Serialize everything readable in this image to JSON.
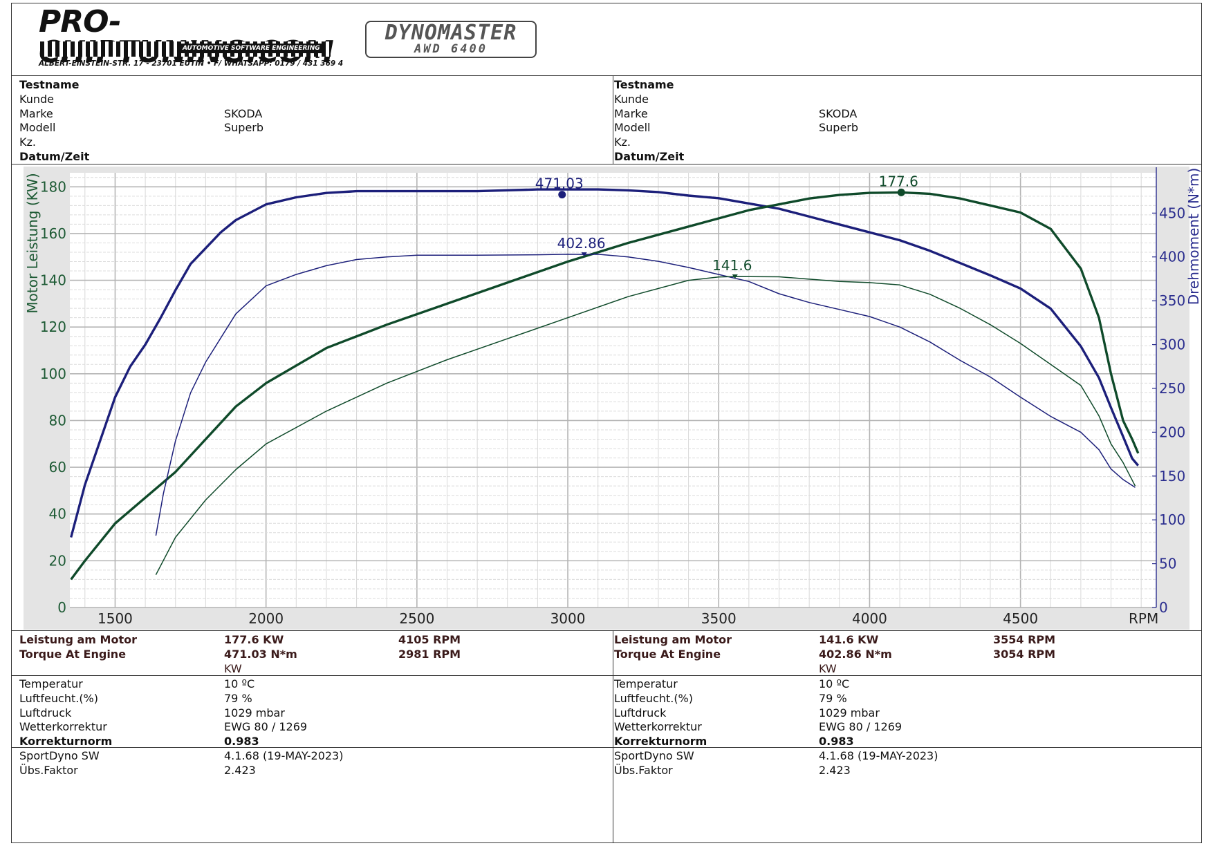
{
  "header": {
    "brand": "PRO-CHIPTUNING.COM",
    "brand_tagline": "AUTOMOTIVE SOFTWARE ENGINEERING",
    "address": "ALBERT-EINSTEIN-STR. 17 - 23701 EUTIN • F/ WHATSAPP: 0179 / 431 369 4",
    "dyno_line1": "DYNOMASTER",
    "dyno_line2": "AWD 6400"
  },
  "info_panels": [
    {
      "rows": [
        {
          "label": "Testname",
          "value": "",
          "bold": true
        },
        {
          "label": "Kunde",
          "value": "",
          "bold": false
        },
        {
          "label": "Marke",
          "value": "SKODA",
          "bold": false
        },
        {
          "label": "Modell",
          "value": "Superb",
          "bold": false
        },
        {
          "label": "Kz.",
          "value": "",
          "bold": false
        },
        {
          "label": "Datum/Zeit",
          "value": "",
          "bold": true
        }
      ]
    },
    {
      "rows": [
        {
          "label": "Testname",
          "value": "",
          "bold": true
        },
        {
          "label": "Kunde",
          "value": "",
          "bold": false
        },
        {
          "label": "Marke",
          "value": "SKODA",
          "bold": false
        },
        {
          "label": "Modell",
          "value": "Superb",
          "bold": false
        },
        {
          "label": "Kz.",
          "value": "",
          "bold": false
        },
        {
          "label": "Datum/Zeit",
          "value": "",
          "bold": true
        }
      ]
    }
  ],
  "results": [
    {
      "power_label": "Leistung am Motor",
      "power_value": "177.6 KW",
      "power_rpm": "4105 RPM",
      "torque_label": "Torque At Engine",
      "torque_value": "471.03 N*m",
      "torque_rpm": "2981 RPM",
      "unit": "KW",
      "temperatur_label": "Temperatur",
      "temperatur_value": "10 ºC",
      "luftfeucht_label": "Luftfeucht.(%)",
      "luftfeucht_value": "79 %",
      "luftdruck_label": "Luftdruck",
      "luftdruck_value": "1029 mbar",
      "wetter_label": "Wetterkorrektur",
      "wetter_value": "EWG 80 / 1269",
      "korrektur_label": "Korrekturnorm",
      "korrektur_value": "0.983",
      "sw_label": "SportDyno SW",
      "sw_value": "4.1.68 (19-MAY-2023)",
      "faktor_label": "Übs.Faktor",
      "faktor_value": "2.423"
    },
    {
      "power_label": "Leistung am Motor",
      "power_value": "141.6 KW",
      "power_rpm": "3554 RPM",
      "torque_label": "Torque At Engine",
      "torque_value": "402.86 N*m",
      "torque_rpm": "3054 RPM",
      "unit": "KW",
      "temperatur_label": "Temperatur",
      "temperatur_value": "10 ºC",
      "luftfeucht_label": "Luftfeucht.(%)",
      "luftfeucht_value": "79 %",
      "luftdruck_label": "Luftdruck",
      "luftdruck_value": "1029 mbar",
      "wetter_label": "Wetterkorrektur",
      "wetter_value": "EWG 80 / 1269",
      "korrektur_label": "Korrekturnorm",
      "korrektur_value": "0.983",
      "sw_label": "SportDyno SW",
      "sw_value": "4.1.68 (19-MAY-2023)",
      "faktor_label": "Übs.Faktor",
      "faktor_value": "2.423"
    }
  ],
  "chart_data": {
    "type": "line",
    "xlabel": "RPM",
    "ylabel": "Motor Leistung (KW)",
    "y2label": "Drehmoment (N*m)",
    "xlim": [
      1350,
      4950
    ],
    "ylim": [
      0,
      186
    ],
    "y2lim": [
      0,
      496
    ],
    "x_ticks": [
      1500,
      2000,
      2500,
      3000,
      3500,
      4000,
      4500
    ],
    "y_ticks": [
      0,
      20,
      40,
      60,
      80,
      100,
      120,
      140,
      160,
      180
    ],
    "y2_ticks": [
      0,
      50,
      100,
      150,
      200,
      250,
      300,
      350,
      400,
      450
    ],
    "grid": true,
    "colors": {
      "power": "#0f4a2a",
      "torque": "#1c1f7a",
      "power_axis": "#1d5a34",
      "torque_axis": "#2a2d8e"
    },
    "series": [
      {
        "kind": "torque",
        "axis": "y2",
        "weight": "thick",
        "peak": {
          "x": 2981,
          "y": 471.03,
          "label": "471.03"
        },
        "points": [
          [
            1354,
            80
          ],
          [
            1400,
            140
          ],
          [
            1500,
            240
          ],
          [
            1550,
            275
          ],
          [
            1600,
            300
          ],
          [
            1650,
            330
          ],
          [
            1700,
            362
          ],
          [
            1750,
            392
          ],
          [
            1800,
            410
          ],
          [
            1850,
            428
          ],
          [
            1900,
            442
          ],
          [
            2000,
            460
          ],
          [
            2100,
            468
          ],
          [
            2200,
            473
          ],
          [
            2300,
            475
          ],
          [
            2500,
            475
          ],
          [
            2700,
            475
          ],
          [
            2900,
            477
          ],
          [
            3000,
            477
          ],
          [
            3100,
            477
          ],
          [
            3200,
            476
          ],
          [
            3300,
            474
          ],
          [
            3400,
            470
          ],
          [
            3500,
            467
          ],
          [
            3600,
            461
          ],
          [
            3700,
            455
          ],
          [
            3800,
            446
          ],
          [
            3900,
            437
          ],
          [
            4000,
            428
          ],
          [
            4100,
            419
          ],
          [
            4200,
            407
          ],
          [
            4300,
            393
          ],
          [
            4400,
            379
          ],
          [
            4500,
            364
          ],
          [
            4600,
            341
          ],
          [
            4700,
            298
          ],
          [
            4760,
            262
          ],
          [
            4800,
            228
          ],
          [
            4840,
            195
          ],
          [
            4870,
            170
          ],
          [
            4890,
            162
          ]
        ]
      },
      {
        "kind": "power",
        "axis": "y",
        "weight": "thick",
        "peak": {
          "x": 4105,
          "y": 177.6,
          "label": "177.6"
        },
        "points": [
          [
            1354,
            12
          ],
          [
            1400,
            20
          ],
          [
            1500,
            36
          ],
          [
            1600,
            47
          ],
          [
            1700,
            58
          ],
          [
            1800,
            72
          ],
          [
            1900,
            86
          ],
          [
            2000,
            96
          ],
          [
            2200,
            111
          ],
          [
            2400,
            121
          ],
          [
            2600,
            130
          ],
          [
            2800,
            139
          ],
          [
            3000,
            148
          ],
          [
            3200,
            156
          ],
          [
            3400,
            163
          ],
          [
            3600,
            170
          ],
          [
            3800,
            175
          ],
          [
            3900,
            176.5
          ],
          [
            4000,
            177.4
          ],
          [
            4105,
            177.6
          ],
          [
            4200,
            177
          ],
          [
            4300,
            175
          ],
          [
            4400,
            172
          ],
          [
            4500,
            169
          ],
          [
            4600,
            162
          ],
          [
            4700,
            145
          ],
          [
            4760,
            124
          ],
          [
            4800,
            100
          ],
          [
            4840,
            80
          ],
          [
            4870,
            72
          ],
          [
            4890,
            66
          ]
        ]
      },
      {
        "kind": "torque",
        "axis": "y2",
        "weight": "thin",
        "peak": {
          "x": 3054,
          "y": 402.86,
          "label": "402.86"
        },
        "points": [
          [
            1635,
            82
          ],
          [
            1660,
            130
          ],
          [
            1700,
            190
          ],
          [
            1750,
            245
          ],
          [
            1800,
            280
          ],
          [
            1900,
            335
          ],
          [
            2000,
            367
          ],
          [
            2100,
            380
          ],
          [
            2200,
            390
          ],
          [
            2300,
            397
          ],
          [
            2400,
            400
          ],
          [
            2500,
            402
          ],
          [
            2700,
            402
          ],
          [
            2900,
            402.5
          ],
          [
            3000,
            403
          ],
          [
            3054,
            402.9
          ],
          [
            3100,
            403
          ],
          [
            3200,
            400
          ],
          [
            3300,
            395
          ],
          [
            3400,
            388
          ],
          [
            3500,
            380
          ],
          [
            3600,
            372
          ],
          [
            3700,
            358
          ],
          [
            3800,
            348
          ],
          [
            3900,
            340
          ],
          [
            4000,
            332
          ],
          [
            4100,
            320
          ],
          [
            4200,
            303
          ],
          [
            4300,
            282
          ],
          [
            4400,
            263
          ],
          [
            4500,
            240
          ],
          [
            4600,
            218
          ],
          [
            4700,
            200
          ],
          [
            4760,
            180
          ],
          [
            4800,
            158
          ],
          [
            4840,
            146
          ],
          [
            4880,
            137
          ]
        ]
      },
      {
        "kind": "power",
        "axis": "y",
        "weight": "thin",
        "peak": {
          "x": 3554,
          "y": 141.6,
          "label": "141.6"
        },
        "points": [
          [
            1635,
            14
          ],
          [
            1700,
            30
          ],
          [
            1800,
            46
          ],
          [
            1900,
            59
          ],
          [
            2000,
            70
          ],
          [
            2200,
            84
          ],
          [
            2400,
            96
          ],
          [
            2600,
            106
          ],
          [
            2800,
            115
          ],
          [
            3000,
            124
          ],
          [
            3200,
            133
          ],
          [
            3400,
            140
          ],
          [
            3500,
            141.4
          ],
          [
            3554,
            141.6
          ],
          [
            3700,
            141.5
          ],
          [
            3800,
            140.5
          ],
          [
            3900,
            139.5
          ],
          [
            4000,
            139
          ],
          [
            4100,
            138
          ],
          [
            4200,
            134
          ],
          [
            4300,
            128
          ],
          [
            4400,
            121
          ],
          [
            4500,
            113
          ],
          [
            4600,
            104
          ],
          [
            4700,
            95
          ],
          [
            4760,
            82
          ],
          [
            4800,
            70
          ],
          [
            4840,
            62
          ],
          [
            4880,
            52
          ]
        ]
      }
    ]
  }
}
